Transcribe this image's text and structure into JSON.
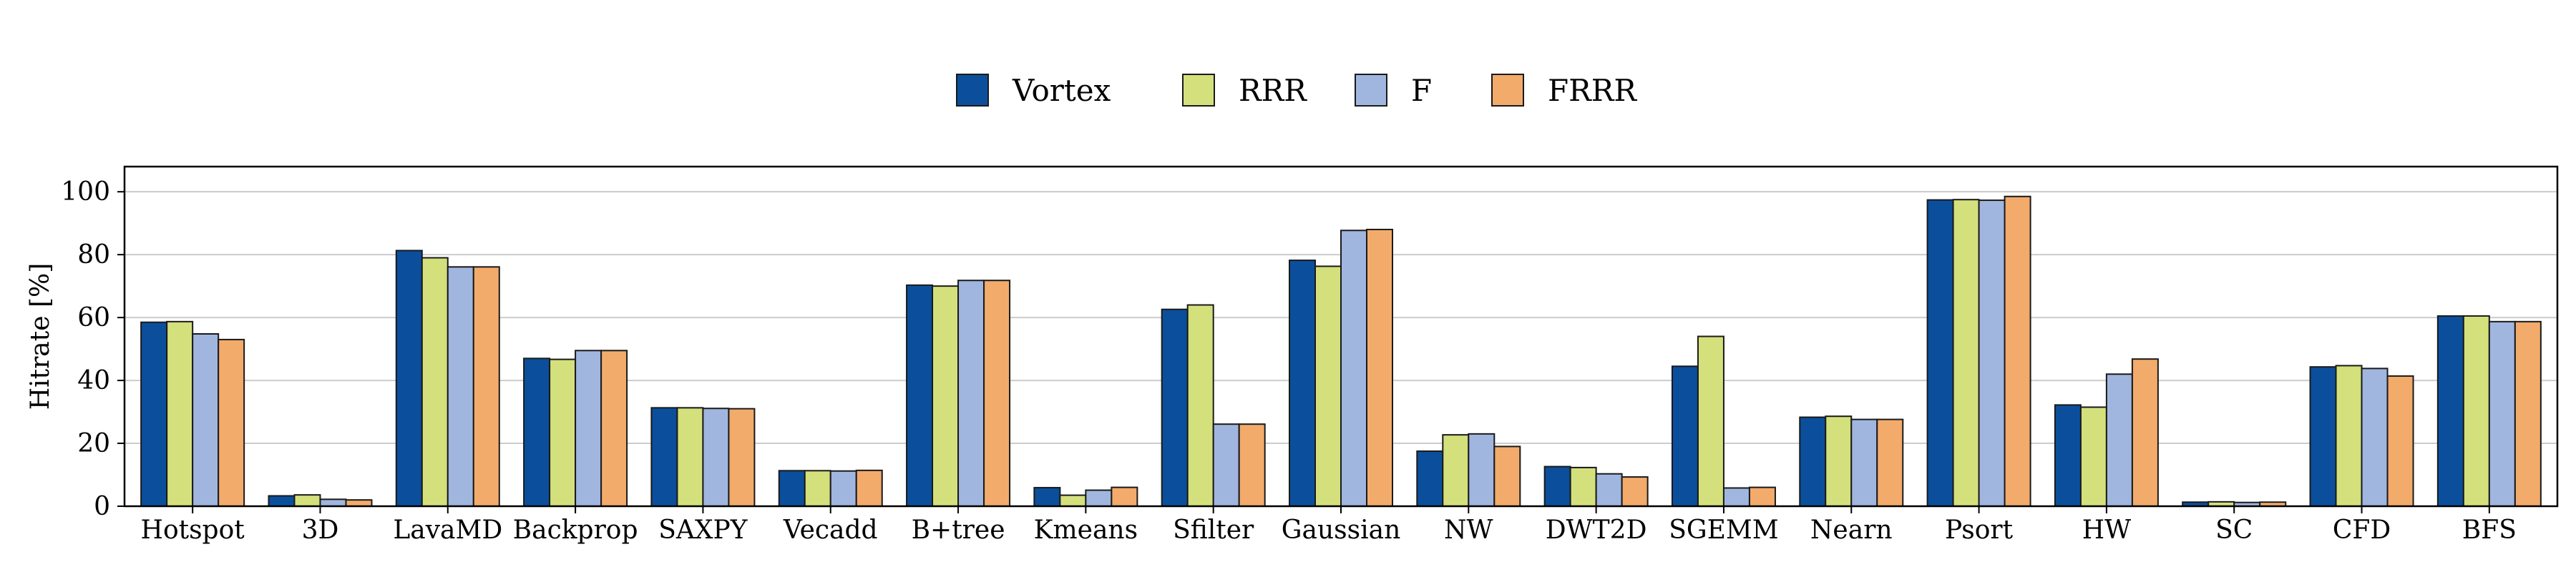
{
  "chart_data": {
    "type": "bar",
    "title": "",
    "xlabel": "",
    "ylabel": "Hitrate [%]",
    "ylim": [
      0,
      108
    ],
    "yticks": [
      0,
      20,
      40,
      60,
      80,
      100
    ],
    "grid": "horizontal",
    "legend_position": "top-center",
    "categories": [
      "Hotspot",
      "3D",
      "LavaMD",
      "Backprop",
      "SAXPY",
      "Vecadd",
      "B+tree",
      "Kmeans",
      "Sfilter",
      "Gaussian",
      "NW",
      "DWT2D",
      "SGEMM",
      "Nearn",
      "Psort",
      "HW",
      "SC",
      "CFD",
      "BFS"
    ],
    "series": [
      {
        "name": "Vortex",
        "color": "#0b4f9c",
        "values": [
          58.5,
          3.3,
          81.3,
          47.0,
          31.3,
          11.3,
          70.3,
          5.9,
          62.6,
          78.2,
          17.5,
          12.6,
          44.5,
          28.3,
          97.4,
          32.2,
          1.3,
          44.3,
          60.5
        ]
      },
      {
        "name": "RRR",
        "color": "#d4e07c",
        "values": [
          58.7,
          3.6,
          79.0,
          46.7,
          31.3,
          11.3,
          70.0,
          3.5,
          64.0,
          76.3,
          22.7,
          12.3,
          54.0,
          28.6,
          97.5,
          31.5,
          1.4,
          44.7,
          60.5
        ]
      },
      {
        "name": "F",
        "color": "#a0b6df",
        "values": [
          54.8,
          2.2,
          76.1,
          49.5,
          31.1,
          11.2,
          71.8,
          5.1,
          26.1,
          87.7,
          23.0,
          10.3,
          5.8,
          27.6,
          97.3,
          42.0,
          1.2,
          43.8,
          58.7
        ]
      },
      {
        "name": "FRRR",
        "color": "#f2ab6b",
        "values": [
          53.0,
          2.0,
          76.1,
          49.5,
          31.0,
          11.4,
          71.8,
          6.0,
          26.1,
          88.0,
          19.0,
          9.3,
          6.0,
          27.6,
          98.5,
          46.8,
          1.3,
          41.4,
          58.7
        ]
      }
    ]
  }
}
